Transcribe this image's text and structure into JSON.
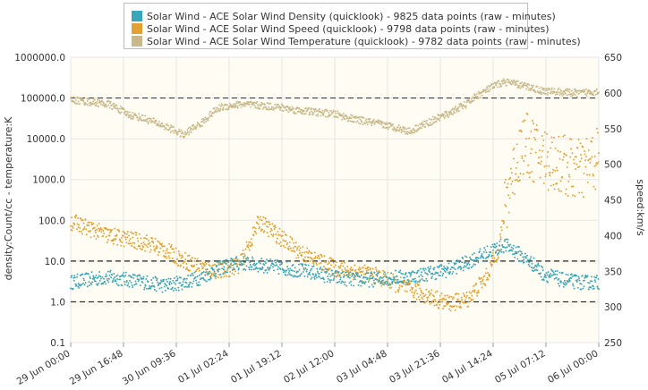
{
  "chart_data": {
    "type": "scatter",
    "legend_placement": "top-center",
    "grid": true,
    "x_tick_labels": [
      "29 Jun 00:00",
      "29 Jun 16:48",
      "30 Jun 09:36",
      "01 Jul 02:24",
      "01 Jul 19:12",
      "02 Jul 12:00",
      "03 Jul 04:48",
      "03 Jul 21:36",
      "04 Jul 14:24",
      "05 Jul 07:12",
      "06 Jul 00:00"
    ],
    "x_range_hours": [
      0,
      168
    ],
    "left_axis": {
      "label": "density:Count/cc - temperature:K",
      "scale": "log",
      "range": [
        0.1,
        1000000
      ],
      "tick_labels": [
        "0.1",
        "1.0",
        "10.0",
        "100.0",
        "1000.0",
        "10000.0",
        "100000.0",
        "1000000.0"
      ]
    },
    "right_axis": {
      "label": "speed:km/s",
      "scale": "linear",
      "range": [
        250,
        650
      ],
      "tick_labels": [
        "250",
        "300",
        "350",
        "400",
        "450",
        "500",
        "550",
        "600",
        "650"
      ]
    },
    "reference_lines": [
      {
        "axis": "left",
        "value": 100000,
        "color": "#2b3a9a"
      },
      {
        "axis": "left",
        "value": 10,
        "color": "#222222"
      },
      {
        "axis": "left",
        "value": 1,
        "color": "#222222"
      }
    ],
    "series": [
      {
        "name": "Solar Wind - ACE Solar Wind Density (quicklook) - 9825 data points (raw - minutes)",
        "color": "#3aa6b9",
        "axis": "left",
        "x_hours": [
          0,
          6,
          12,
          18,
          24,
          30,
          36,
          42,
          48,
          54,
          60,
          66,
          72,
          78,
          84,
          90,
          96,
          102,
          108,
          114,
          120,
          126,
          132,
          138,
          144,
          150,
          156,
          162,
          168
        ],
        "values": [
          3,
          3.5,
          4,
          3.5,
          3,
          2.5,
          3,
          4,
          7,
          9,
          8,
          7,
          6,
          5,
          4,
          3.5,
          3.5,
          4,
          4,
          5,
          6,
          9,
          15,
          25,
          12,
          5,
          3.5,
          3,
          3
        ]
      },
      {
        "name": "Solar Wind - ACE Solar Wind Speed (quicklook) - 9798 data points (raw - minutes)",
        "color": "#e3a133",
        "axis": "right",
        "x_hours": [
          0,
          6,
          12,
          18,
          24,
          30,
          36,
          42,
          48,
          54,
          60,
          66,
          72,
          78,
          84,
          90,
          96,
          102,
          108,
          114,
          120,
          126,
          132,
          136,
          140,
          144,
          150,
          156,
          162,
          168
        ],
        "values": [
          420,
          410,
          400,
          395,
          390,
          380,
          365,
          355,
          350,
          360,
          420,
          400,
          380,
          365,
          355,
          350,
          345,
          335,
          325,
          315,
          305,
          310,
          340,
          380,
          480,
          530,
          510,
          500,
          490,
          510
        ]
      },
      {
        "name": "Solar Wind - ACE Solar Wind Temperature (quicklook) - 9782 data points (raw - minutes)",
        "color": "#c8b88a",
        "axis": "left",
        "x_hours": [
          0,
          6,
          12,
          18,
          24,
          30,
          36,
          42,
          48,
          54,
          60,
          66,
          72,
          78,
          84,
          90,
          96,
          102,
          108,
          114,
          120,
          126,
          132,
          138,
          144,
          150,
          156,
          162,
          168
        ],
        "values": [
          90000,
          80000,
          70000,
          40000,
          30000,
          20000,
          12000,
          25000,
          60000,
          70000,
          65000,
          60000,
          50000,
          45000,
          40000,
          30000,
          25000,
          20000,
          15000,
          25000,
          40000,
          70000,
          150000,
          250000,
          200000,
          150000,
          140000,
          130000,
          150000
        ]
      }
    ]
  }
}
